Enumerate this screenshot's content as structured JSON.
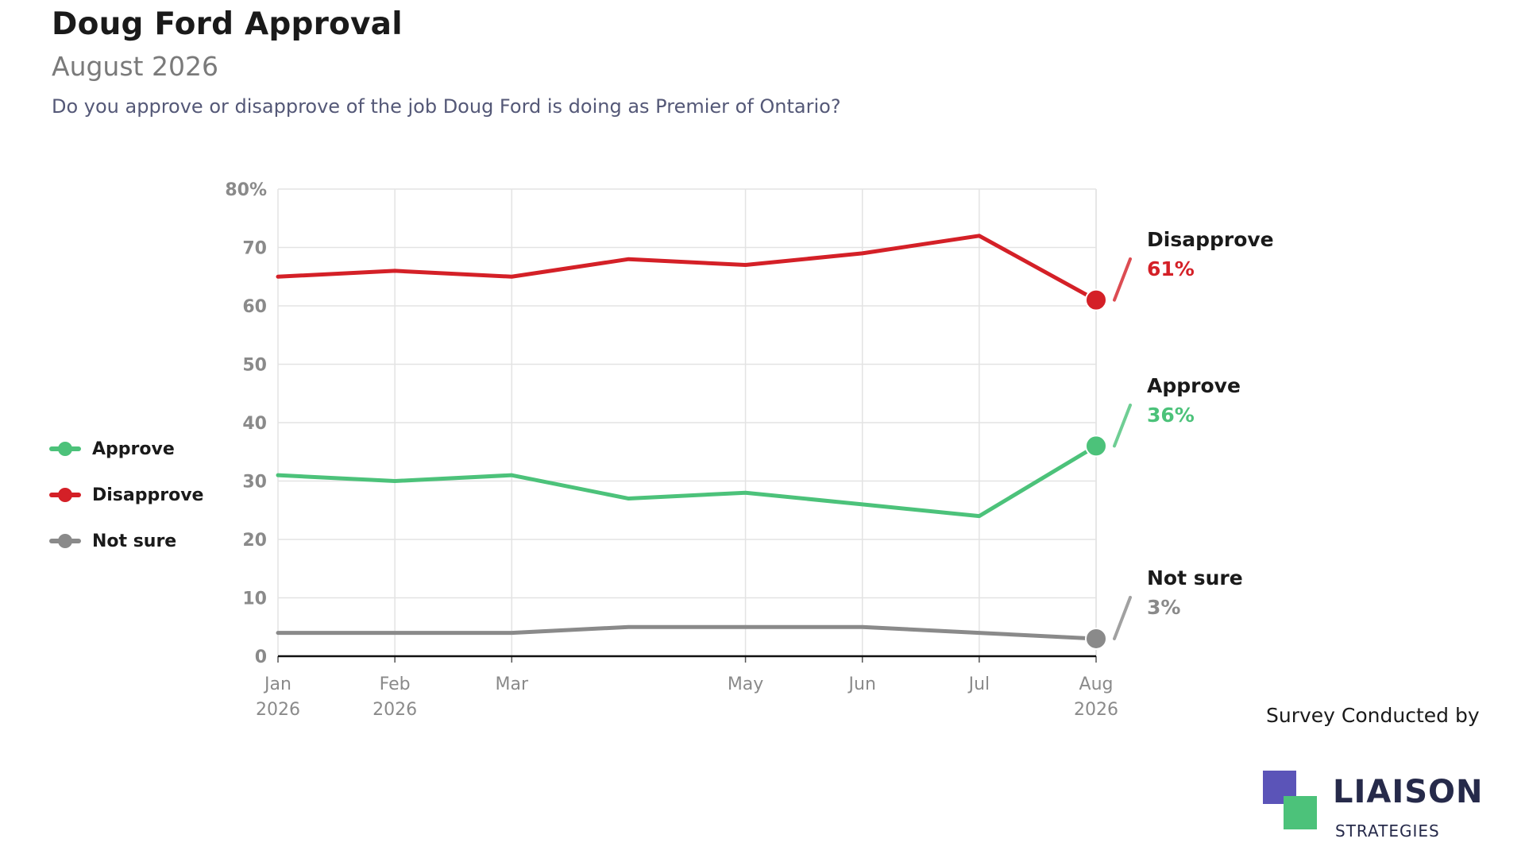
{
  "header": {
    "title": "Doug Ford Approval",
    "subtitle": "August 2026",
    "question": "Do you approve or disapprove of the job Doug Ford is doing as Premier of Ontario?"
  },
  "legend": {
    "placement": "left",
    "items": [
      {
        "label": "Approve",
        "color": "#4cc27a"
      },
      {
        "label": "Disapprove",
        "color": "#d42027"
      },
      {
        "label": "Not sure",
        "color": "#8a8a8a"
      }
    ]
  },
  "chart_data": {
    "type": "line",
    "title": "Doug Ford Approval",
    "subtitle": "August 2026",
    "x": [
      "2026-01",
      "2026-02",
      "2026-03",
      "2026-04",
      "2026-05",
      "2026-06",
      "2026-07",
      "2026-08"
    ],
    "x_ticks": [
      {
        "x": "2026-01",
        "label": [
          "Jan",
          "2026"
        ]
      },
      {
        "x": "2026-02",
        "label": [
          "Feb",
          "2026"
        ]
      },
      {
        "x": "2026-03",
        "label": [
          "Mar",
          ""
        ]
      },
      {
        "x": "2026-05",
        "label": [
          "May",
          ""
        ]
      },
      {
        "x": "2026-06",
        "label": [
          "Jun",
          ""
        ]
      },
      {
        "x": "2026-07",
        "label": [
          "Jul",
          ""
        ]
      },
      {
        "x": "2026-08",
        "label": [
          "Aug",
          "2026"
        ]
      }
    ],
    "ylim": [
      0,
      80
    ],
    "y_ticks": [
      {
        "value": 0,
        "label": "0"
      },
      {
        "value": 10,
        "label": "10"
      },
      {
        "value": 20,
        "label": "20"
      },
      {
        "value": 30,
        "label": "30"
      },
      {
        "value": 40,
        "label": "40"
      },
      {
        "value": 50,
        "label": "50"
      },
      {
        "value": 60,
        "label": "60"
      },
      {
        "value": 70,
        "label": "70"
      },
      {
        "value": 80,
        "label": "80%"
      }
    ],
    "grid": true,
    "series": [
      {
        "name": "Disapprove",
        "color": "#d42027",
        "values": [
          65,
          66,
          65,
          68,
          67,
          69,
          72,
          61
        ],
        "end_label": "61%"
      },
      {
        "name": "Approve",
        "color": "#4cc27a",
        "values": [
          31,
          30,
          31,
          27,
          28,
          26,
          24,
          36
        ],
        "end_label": "36%"
      },
      {
        "name": "Not sure",
        "color": "#8a8a8a",
        "values": [
          4,
          4,
          4,
          5,
          5,
          5,
          4,
          3
        ],
        "end_label": "3%"
      }
    ]
  },
  "footer": {
    "credit": "Survey Conducted by",
    "logo_name": "LIAISON",
    "logo_sub": "STRATEGIES"
  }
}
